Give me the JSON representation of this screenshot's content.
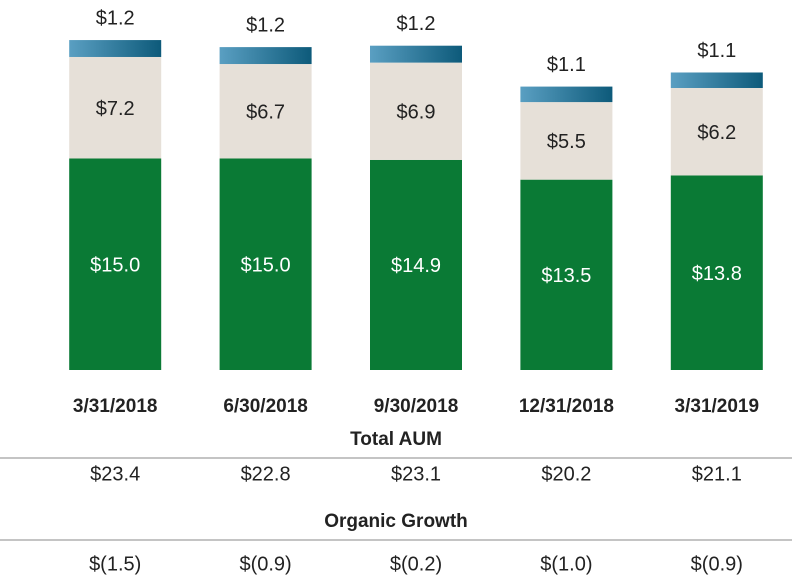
{
  "chart_data": {
    "type": "stacked_bar",
    "categories": [
      "3/31/2018",
      "6/30/2018",
      "9/30/2018",
      "12/31/2018",
      "3/31/2019"
    ],
    "series": [
      {
        "color": "#0a7a35",
        "values": [
          15.0,
          15.0,
          14.9,
          13.5,
          13.8
        ],
        "value_labels": [
          "$15.0",
          "$15.0",
          "$14.9",
          "$13.5",
          "$13.8"
        ]
      },
      {
        "color": "#e6e0d8",
        "values": [
          7.2,
          6.7,
          6.9,
          5.5,
          6.2
        ],
        "value_labels": [
          "$7.2",
          "$6.7",
          "$6.9",
          "$5.5",
          "$6.2"
        ]
      },
      {
        "color": "#2f7fa6",
        "values": [
          1.2,
          1.2,
          1.2,
          1.1,
          1.1
        ],
        "value_labels": [
          "$1.2",
          "$1.2",
          "$1.2",
          "$1.1",
          "$1.1"
        ]
      }
    ],
    "ylim": [
      0,
      26
    ]
  },
  "table": {
    "total_aum": {
      "title": "Total AUM",
      "values": [
        "$23.4",
        "$22.8",
        "$23.1",
        "$20.2",
        "$21.1"
      ]
    },
    "organic_growth": {
      "title": "Organic Growth",
      "values": [
        "$(1.5)",
        "$(0.9)",
        "$(0.2)",
        "$(1.0)",
        "$(0.9)"
      ]
    }
  }
}
